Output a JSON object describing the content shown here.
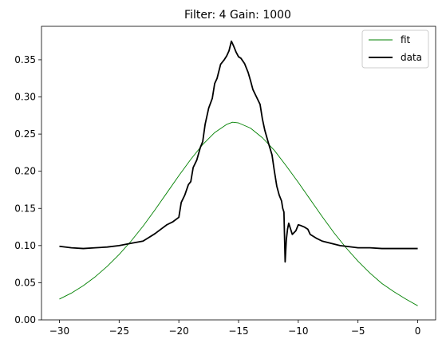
{
  "chart_data": {
    "type": "line",
    "title": "Filter: 4 Gain: 1000",
    "xlabel": "",
    "ylabel": "",
    "xlim": [
      -31.5,
      1.5
    ],
    "ylim": [
      0.0,
      0.395
    ],
    "x_ticks": [
      -30,
      -25,
      -20,
      -15,
      -10,
      -5,
      0
    ],
    "x_tick_labels": [
      "−30",
      "−25",
      "−20",
      "−15",
      "−10",
      "−5",
      "0"
    ],
    "y_ticks": [
      0.0,
      0.05,
      0.1,
      0.15,
      0.2,
      0.25,
      0.3,
      0.35
    ],
    "y_tick_labels": [
      "0.00",
      "0.05",
      "0.10",
      "0.15",
      "0.20",
      "0.25",
      "0.30",
      "0.35"
    ],
    "grid": false,
    "legend_position": "top-right",
    "series": [
      {
        "name": "fit",
        "color": "#008000",
        "style": "thin",
        "x": [
          -30,
          -29,
          -28,
          -27,
          -26,
          -25,
          -24,
          -23,
          -22,
          -21,
          -20,
          -19,
          -18,
          -17,
          -16,
          -15.5,
          -15,
          -14,
          -13,
          -12,
          -11,
          -10,
          -9,
          -8,
          -7,
          -6,
          -5,
          -4,
          -3,
          -2,
          -1,
          0
        ],
        "y": [
          0.028,
          0.036,
          0.046,
          0.058,
          0.072,
          0.088,
          0.106,
          0.126,
          0.148,
          0.171,
          0.194,
          0.216,
          0.236,
          0.252,
          0.263,
          0.266,
          0.265,
          0.258,
          0.245,
          0.228,
          0.207,
          0.185,
          0.162,
          0.139,
          0.117,
          0.097,
          0.079,
          0.063,
          0.049,
          0.038,
          0.028,
          0.019
        ]
      },
      {
        "name": "data",
        "color": "#000000",
        "style": "thick",
        "x": [
          -30,
          -29,
          -28,
          -27,
          -26,
          -25,
          -24,
          -23,
          -22.5,
          -22,
          -21.5,
          -21,
          -20.5,
          -20,
          -19.8,
          -19.5,
          -19.2,
          -19,
          -18.8,
          -18.5,
          -18.2,
          -18,
          -17.8,
          -17.5,
          -17.2,
          -17,
          -16.8,
          -16.5,
          -16.2,
          -16,
          -15.8,
          -15.6,
          -15.4,
          -15.2,
          -15,
          -14.8,
          -14.5,
          -14.2,
          -14,
          -13.8,
          -13.5,
          -13.2,
          -13,
          -12.8,
          -12.5,
          -12.2,
          -12,
          -11.8,
          -11.6,
          -11.5,
          -11.4,
          -11.3,
          -11.2,
          -11.1,
          -11.0,
          -10.9,
          -10.8,
          -10.7,
          -10.5,
          -10.2,
          -10,
          -9.8,
          -9.5,
          -9.2,
          -9,
          -8.5,
          -8,
          -7.5,
          -7,
          -6.5,
          -6,
          -5,
          -4,
          -3,
          -2,
          -1,
          0
        ],
        "y": [
          0.099,
          0.097,
          0.096,
          0.097,
          0.098,
          0.1,
          0.103,
          0.106,
          0.111,
          0.116,
          0.122,
          0.128,
          0.132,
          0.138,
          0.158,
          0.168,
          0.182,
          0.186,
          0.205,
          0.215,
          0.232,
          0.24,
          0.263,
          0.285,
          0.298,
          0.318,
          0.325,
          0.344,
          0.35,
          0.355,
          0.362,
          0.375,
          0.368,
          0.36,
          0.354,
          0.352,
          0.345,
          0.333,
          0.322,
          0.31,
          0.3,
          0.29,
          0.27,
          0.255,
          0.238,
          0.222,
          0.2,
          0.18,
          0.168,
          0.164,
          0.16,
          0.15,
          0.145,
          0.078,
          0.108,
          0.122,
          0.13,
          0.125,
          0.115,
          0.12,
          0.128,
          0.127,
          0.125,
          0.122,
          0.115,
          0.11,
          0.106,
          0.104,
          0.102,
          0.1,
          0.099,
          0.097,
          0.097,
          0.096,
          0.096,
          0.096,
          0.096
        ]
      }
    ]
  }
}
